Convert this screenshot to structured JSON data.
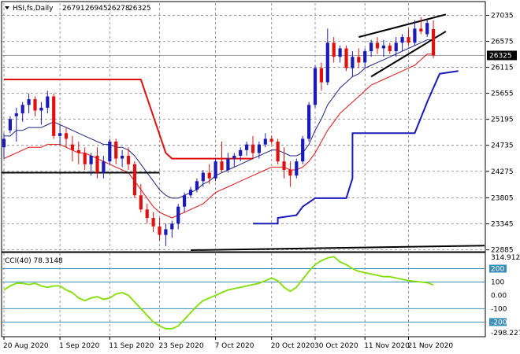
{
  "window": {
    "symbol_line": "HSI,fs,Daily",
    "ohlc": [
      "26791",
      "26945",
      "26278",
      "26325"
    ]
  },
  "colors": {
    "bull": "#1a1ab8",
    "bear": "#e01010",
    "ma_fast": "#1a237e",
    "ma_slow": "#e01010",
    "support": "#1a1ab8",
    "resistance": "#e01010",
    "horizontal": "#000000",
    "cci": "#7fe000",
    "level_lines": "#3a8fb7",
    "grid": "#808080",
    "price_badge": "#000000"
  },
  "chart_data": [
    {
      "type": "candlestick",
      "symbol": "HSI",
      "timeframe": "Daily",
      "y_ticks": [
        22885,
        23345,
        23805,
        24275,
        24735,
        25195,
        25655,
        26115,
        26575,
        27035
      ],
      "ylim": [
        22880,
        27250
      ],
      "current_price": 26325,
      "x_tick_labels": [
        "20 Aug 2020",
        "1 Sep 2020",
        "11 Sep 2020",
        "23 Sep 2020",
        "7 Oct 2020",
        "20 Oct 2020",
        "30 Oct 2020",
        "11 Nov 2020",
        "21 Nov 2020"
      ],
      "x_tick_bars": [
        0,
        9,
        17,
        25,
        34,
        43,
        50,
        58,
        65
      ],
      "grid": true,
      "candles": [
        {
          "o": 24700,
          "h": 24950,
          "l": 24500,
          "c": 24850
        },
        {
          "o": 25000,
          "h": 25250,
          "l": 24950,
          "c": 25200
        },
        {
          "o": 25250,
          "h": 25400,
          "l": 24800,
          "c": 25300
        },
        {
          "o": 25300,
          "h": 25500,
          "l": 25150,
          "c": 25450
        },
        {
          "o": 25450,
          "h": 25650,
          "l": 25300,
          "c": 25550
        },
        {
          "o": 25550,
          "h": 25600,
          "l": 25250,
          "c": 25350
        },
        {
          "o": 25350,
          "h": 25500,
          "l": 25100,
          "c": 25400
        },
        {
          "o": 25400,
          "h": 25700,
          "l": 25300,
          "c": 25600
        },
        {
          "o": 25600,
          "h": 25650,
          "l": 24850,
          "c": 24900
        },
        {
          "o": 24900,
          "h": 25100,
          "l": 24750,
          "c": 24950
        },
        {
          "o": 24950,
          "h": 25050,
          "l": 24700,
          "c": 24850
        },
        {
          "o": 24750,
          "h": 24900,
          "l": 24450,
          "c": 24650
        },
        {
          "o": 24650,
          "h": 24800,
          "l": 24400,
          "c": 24600
        },
        {
          "o": 24600,
          "h": 24700,
          "l": 24300,
          "c": 24400
        },
        {
          "o": 24400,
          "h": 24600,
          "l": 24200,
          "c": 24550
        },
        {
          "o": 24550,
          "h": 24700,
          "l": 24150,
          "c": 24250
        },
        {
          "o": 24250,
          "h": 24550,
          "l": 24150,
          "c": 24450
        },
        {
          "o": 24450,
          "h": 24850,
          "l": 24400,
          "c": 24800
        },
        {
          "o": 24800,
          "h": 24850,
          "l": 24400,
          "c": 24500
        },
        {
          "o": 24500,
          "h": 24650,
          "l": 24350,
          "c": 24550
        },
        {
          "o": 24550,
          "h": 24700,
          "l": 24300,
          "c": 24400
        },
        {
          "o": 24400,
          "h": 24450,
          "l": 23800,
          "c": 23850
        },
        {
          "o": 23850,
          "h": 24050,
          "l": 23550,
          "c": 23600
        },
        {
          "o": 23600,
          "h": 23700,
          "l": 23350,
          "c": 23450
        },
        {
          "o": 23450,
          "h": 23550,
          "l": 23200,
          "c": 23300
        },
        {
          "o": 23300,
          "h": 23450,
          "l": 23050,
          "c": 23150
        },
        {
          "o": 23150,
          "h": 23350,
          "l": 22950,
          "c": 23250
        },
        {
          "o": 23250,
          "h": 23400,
          "l": 23100,
          "c": 23350
        },
        {
          "o": 23350,
          "h": 23700,
          "l": 23250,
          "c": 23650
        },
        {
          "o": 23650,
          "h": 23900,
          "l": 23550,
          "c": 23850
        },
        {
          "o": 23850,
          "h": 24000,
          "l": 23800,
          "c": 23950
        },
        {
          "o": 23950,
          "h": 24150,
          "l": 23900,
          "c": 24100
        },
        {
          "o": 24100,
          "h": 24300,
          "l": 24000,
          "c": 24250
        },
        {
          "o": 24250,
          "h": 24400,
          "l": 24050,
          "c": 24150
        },
        {
          "o": 24150,
          "h": 24500,
          "l": 24100,
          "c": 24450
        },
        {
          "o": 24450,
          "h": 24800,
          "l": 24250,
          "c": 24300
        },
        {
          "o": 24300,
          "h": 24600,
          "l": 24250,
          "c": 24500
        },
        {
          "o": 24500,
          "h": 24600,
          "l": 24350,
          "c": 24550
        },
        {
          "o": 24550,
          "h": 24700,
          "l": 24450,
          "c": 24650
        },
        {
          "o": 24650,
          "h": 24800,
          "l": 24550,
          "c": 24750
        },
        {
          "o": 24750,
          "h": 24900,
          "l": 24500,
          "c": 24600
        },
        {
          "o": 24600,
          "h": 24800,
          "l": 24500,
          "c": 24750
        },
        {
          "o": 24750,
          "h": 24950,
          "l": 24700,
          "c": 24850
        },
        {
          "o": 24850,
          "h": 24900,
          "l": 24750,
          "c": 24800
        },
        {
          "o": 24800,
          "h": 24850,
          "l": 24400,
          "c": 24450
        },
        {
          "o": 24450,
          "h": 24700,
          "l": 24150,
          "c": 24300
        },
        {
          "o": 24300,
          "h": 24450,
          "l": 24000,
          "c": 24200
        },
        {
          "o": 24200,
          "h": 24500,
          "l": 24150,
          "c": 24450
        },
        {
          "o": 24450,
          "h": 24900,
          "l": 24400,
          "c": 24850
        },
        {
          "o": 24850,
          "h": 25500,
          "l": 24800,
          "c": 25450
        },
        {
          "o": 25450,
          "h": 26150,
          "l": 25400,
          "c": 26100
        },
        {
          "o": 26100,
          "h": 26200,
          "l": 25700,
          "c": 25850
        },
        {
          "o": 25850,
          "h": 26800,
          "l": 25800,
          "c": 26550
        },
        {
          "o": 26550,
          "h": 26650,
          "l": 26200,
          "c": 26300
        },
        {
          "o": 26300,
          "h": 26500,
          "l": 26200,
          "c": 26450
        },
        {
          "o": 26450,
          "h": 26500,
          "l": 26050,
          "c": 26100
        },
        {
          "o": 26100,
          "h": 26400,
          "l": 25950,
          "c": 26300
        },
        {
          "o": 26300,
          "h": 26450,
          "l": 26100,
          "c": 26200
        },
        {
          "o": 26200,
          "h": 26450,
          "l": 26100,
          "c": 26400
        },
        {
          "o": 26400,
          "h": 26600,
          "l": 26300,
          "c": 26550
        },
        {
          "o": 26550,
          "h": 26650,
          "l": 26350,
          "c": 26450
        },
        {
          "o": 26450,
          "h": 26600,
          "l": 26300,
          "c": 26500
        },
        {
          "o": 26500,
          "h": 26550,
          "l": 26350,
          "c": 26400
        },
        {
          "o": 26400,
          "h": 26650,
          "l": 26300,
          "c": 26550
        },
        {
          "o": 26550,
          "h": 26700,
          "l": 26400,
          "c": 26650
        },
        {
          "o": 26650,
          "h": 26800,
          "l": 26500,
          "c": 26550
        },
        {
          "o": 26550,
          "h": 26950,
          "l": 26500,
          "c": 26800
        },
        {
          "o": 26800,
          "h": 27000,
          "l": 26700,
          "c": 26750
        },
        {
          "o": 26700,
          "h": 26950,
          "l": 26650,
          "c": 26900
        },
        {
          "o": 26791,
          "h": 26945,
          "l": 26278,
          "c": 26325
        }
      ],
      "ma_fast": [
        24900,
        24900,
        25000,
        25000,
        25050,
        25050,
        25050,
        25100,
        25150,
        25100,
        25050,
        25000,
        24950,
        24900,
        24850,
        24800,
        24750,
        24750,
        24700,
        24700,
        24650,
        24550,
        24400,
        24250,
        24100,
        23950,
        23850,
        23800,
        23800,
        23850,
        23900,
        23950,
        24050,
        24100,
        24200,
        24250,
        24300,
        24350,
        24400,
        24450,
        24500,
        24550,
        24600,
        24650,
        24650,
        24600,
        24550,
        24550,
        24600,
        24750,
        25000,
        25200,
        25450,
        25600,
        25750,
        25850,
        25950,
        26000,
        26100,
        26150,
        26200,
        26250,
        26300,
        26350,
        26400,
        26450,
        26500,
        26550,
        26600,
        26600
      ],
      "ma_slow": [
        24500,
        24550,
        24600,
        24650,
        24700,
        24700,
        24700,
        24750,
        24750,
        24750,
        24700,
        24650,
        24600,
        24600,
        24550,
        24500,
        24450,
        24400,
        24350,
        24300,
        24250,
        24100,
        23950,
        23800,
        23650,
        23550,
        23500,
        23450,
        23500,
        23550,
        23600,
        23650,
        23700,
        23800,
        23900,
        23950,
        24000,
        24050,
        24100,
        24150,
        24200,
        24250,
        24300,
        24350,
        24350,
        24350,
        24300,
        24300,
        24350,
        24450,
        24600,
        24800,
        25000,
        25150,
        25300,
        25400,
        25500,
        25600,
        25700,
        25800,
        25850,
        25900,
        25950,
        26000,
        26050,
        26100,
        26150,
        26250,
        26350,
        26350
      ],
      "resistance_steps": [
        {
          "from": 0,
          "to": 23,
          "points": [
            [
              0,
              25900
            ],
            [
              10,
              25900
            ],
            [
              22,
              25900
            ]
          ],
          "descend": [
            [
              22,
              25900
            ],
            [
              26,
              24600
            ],
            [
              27,
              24500
            ]
          ]
        },
        {
          "from": 27,
          "to": 40,
          "level": 24500
        }
      ],
      "support_steps": [
        {
          "from": 40,
          "to": 70,
          "points": [
            [
              40,
              23350
            ],
            [
              44,
              23350
            ],
            [
              44,
              23450
            ],
            [
              47,
              23500
            ],
            [
              48,
              23650
            ],
            [
              50,
              23800
            ],
            [
              55,
              23800
            ],
            [
              56,
              24150
            ],
            [
              56,
              24950
            ],
            [
              66,
              24950
            ],
            [
              68,
              25500
            ],
            [
              70,
              26000
            ],
            [
              73,
              26050
            ]
          ]
        }
      ],
      "horizontal_lines": [
        {
          "from": 0,
          "to": 25,
          "level": 24250
        }
      ],
      "trend_lines": [
        {
          "x1": 57,
          "y1": 26650,
          "x2": 71,
          "y2": 27050
        },
        {
          "x1": 59,
          "y1": 25950,
          "x2": 71,
          "y2": 26750
        }
      ],
      "floor_line": {
        "x1": 30,
        "y1": 22880,
        "x2": 80,
        "y2": 22960
      }
    },
    {
      "type": "line",
      "indicator": "CCI",
      "header": "CCI(40) 78.3148",
      "y_ticks": [
        200,
        100,
        0,
        -100,
        -200
      ],
      "y_tick_labels": [
        "200",
        "100",
        "0.00",
        "-100",
        "-200"
      ],
      "y_top_label": "314.9128",
      "y_bottom_label": "-298.227",
      "level_lines": [
        200,
        100,
        -100,
        -200
      ],
      "ylim": [
        -298.227,
        314.9128
      ],
      "values": [
        40,
        70,
        90,
        90,
        80,
        90,
        70,
        60,
        70,
        70,
        40,
        20,
        -20,
        -40,
        -20,
        -10,
        -30,
        -20,
        10,
        20,
        0,
        -50,
        -100,
        -150,
        -200,
        -230,
        -250,
        -250,
        -230,
        -180,
        -130,
        -80,
        -40,
        -20,
        0,
        20,
        40,
        50,
        60,
        70,
        80,
        90,
        110,
        130,
        110,
        60,
        30,
        60,
        120,
        180,
        230,
        260,
        280,
        290,
        250,
        230,
        200,
        180,
        170,
        160,
        150,
        140,
        140,
        130,
        120,
        110,
        105,
        100,
        95,
        78
      ]
    }
  ]
}
